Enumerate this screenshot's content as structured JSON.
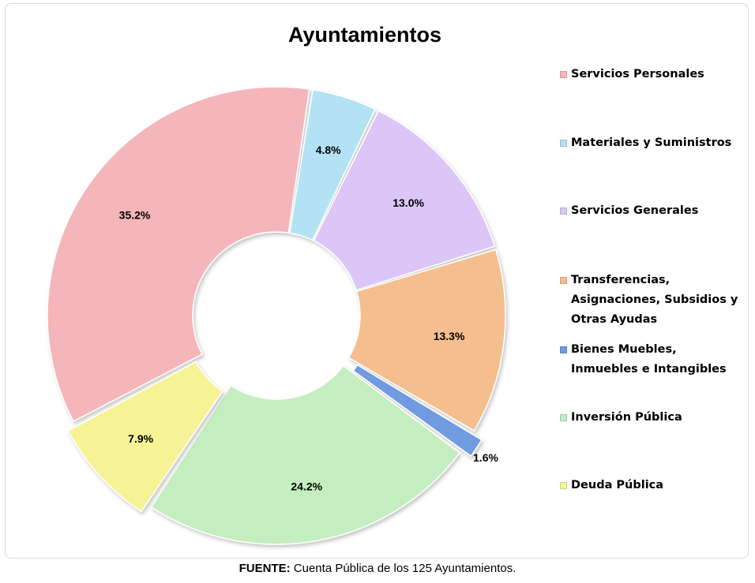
{
  "chart_data": {
    "type": "pie",
    "title": "Ayuntamientos",
    "series": [
      {
        "name": "Servicios Personales",
        "value": 35.2,
        "label": "35.2%",
        "color": "#F4B6BA"
      },
      {
        "name": "Materiales y Suministros",
        "value": 4.8,
        "label": "4.8%",
        "color": "#B2E2F4"
      },
      {
        "name": "Servicios Generales",
        "value": 13.0,
        "label": "13.0%",
        "color": "#DCC6F7"
      },
      {
        "name": "Transferencias, Asignaciones, Subsidios y Otras Ayudas",
        "value": 13.3,
        "label": "13.3%",
        "color": "#F4BE8E"
      },
      {
        "name": "Bienes Muebles, Inmuebles e Intangibles",
        "value": 1.6,
        "label": "1.6%",
        "color": "#6F9BE0"
      },
      {
        "name": "Inversión Pública",
        "value": 24.2,
        "label": "24.2%",
        "color": "#C4EDC0"
      },
      {
        "name": "Deuda Pública",
        "value": 7.9,
        "label": "7.9%",
        "color": "#F6F396"
      }
    ],
    "legend_position": "right",
    "legend_lines": [
      [
        "Servicios Personales"
      ],
      [
        "Materiales y Suministros"
      ],
      [
        "Servicios Generales"
      ],
      [
        "Transferencias,",
        "Asignaciones, Subsidios y",
        "Otras Ayudas"
      ],
      [
        "Bienes Muebles,",
        "Inmuebles e Intangibles"
      ],
      [
        "Inversión Pública"
      ],
      [
        "Deuda Pública"
      ]
    ]
  },
  "source": {
    "label": "FUENTE:",
    "text": " Cuenta Pública de los 125 Ayuntamientos."
  }
}
